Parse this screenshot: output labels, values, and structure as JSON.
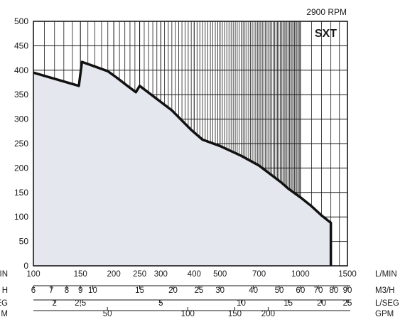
{
  "chart_data": {
    "type": "area",
    "title": "SXT",
    "subtitle": "2900 RPM",
    "ylim": [
      0,
      500
    ],
    "y_ticks": [
      "0",
      "50",
      "100",
      "150",
      "200",
      "250",
      "300",
      "350",
      "400",
      "450",
      "500"
    ],
    "x_scale": "log",
    "xlim": [
      100,
      1500
    ],
    "x_axes": [
      {
        "unit": "L/MIN",
        "unit_left": "IN",
        "ticks": [
          {
            "v": 100,
            "label": "100"
          },
          {
            "v": 150,
            "label": "150"
          },
          {
            "v": 200,
            "label": "200"
          },
          {
            "v": 250,
            "label": "250"
          },
          {
            "v": 300,
            "label": "300"
          },
          {
            "v": 400,
            "label": "400"
          },
          {
            "v": 500,
            "label": "500"
          },
          {
            "v": 700,
            "label": "700"
          },
          {
            "v": 1000,
            "label": "1000"
          },
          {
            "v": 1500,
            "label": "1500"
          }
        ]
      },
      {
        "unit": "M3/H",
        "unit_left": "H",
        "ticks": [
          {
            "v": 6,
            "label": "6"
          },
          {
            "v": 7,
            "label": "7"
          },
          {
            "v": 8,
            "label": "8"
          },
          {
            "v": 9,
            "label": "9"
          },
          {
            "v": 10,
            "label": "10"
          },
          {
            "v": 15,
            "label": "15"
          },
          {
            "v": 20,
            "label": "20"
          },
          {
            "v": 25,
            "label": "25"
          },
          {
            "v": 30,
            "label": "30"
          },
          {
            "v": 40,
            "label": "40"
          },
          {
            "v": 50,
            "label": "50"
          },
          {
            "v": 60,
            "label": "60"
          },
          {
            "v": 70,
            "label": "70"
          },
          {
            "v": 80,
            "label": "80"
          },
          {
            "v": 90,
            "label": "90"
          }
        ]
      },
      {
        "unit": "L/SEG",
        "unit_left": "EG",
        "ticks": [
          {
            "v": 2,
            "label": "2"
          },
          {
            "v": 2.5,
            "label": "2,5"
          },
          {
            "v": 5,
            "label": "5"
          },
          {
            "v": 10,
            "label": "10"
          },
          {
            "v": 15,
            "label": "15"
          },
          {
            "v": 20,
            "label": "20"
          },
          {
            "v": 25,
            "label": "25"
          }
        ]
      },
      {
        "unit": "GPM",
        "unit_left": "M",
        "ticks": [
          {
            "v": 50,
            "label": "50"
          },
          {
            "v": 100,
            "label": "100"
          },
          {
            "v": 150,
            "label": "150"
          },
          {
            "v": 200,
            "label": "200"
          }
        ]
      }
    ],
    "series": [
      {
        "points": [
          [
            100,
            395
          ],
          [
            148,
            368
          ],
          [
            152,
            417
          ],
          [
            190,
            398
          ],
          [
            205,
            385
          ],
          [
            225,
            368
          ],
          [
            242,
            355
          ],
          [
            250,
            368
          ],
          [
            330,
            318
          ],
          [
            390,
            278
          ],
          [
            430,
            258
          ],
          [
            500,
            245
          ],
          [
            600,
            225
          ],
          [
            700,
            205
          ],
          [
            850,
            170
          ],
          [
            900,
            158
          ],
          [
            1000,
            140
          ],
          [
            1100,
            122
          ],
          [
            1200,
            103
          ],
          [
            1300,
            88
          ],
          [
            1300,
            0
          ]
        ]
      }
    ],
    "colors": {
      "fill": "#e4e7ed",
      "line": "#111111",
      "grid": "#1a1a1a"
    }
  }
}
